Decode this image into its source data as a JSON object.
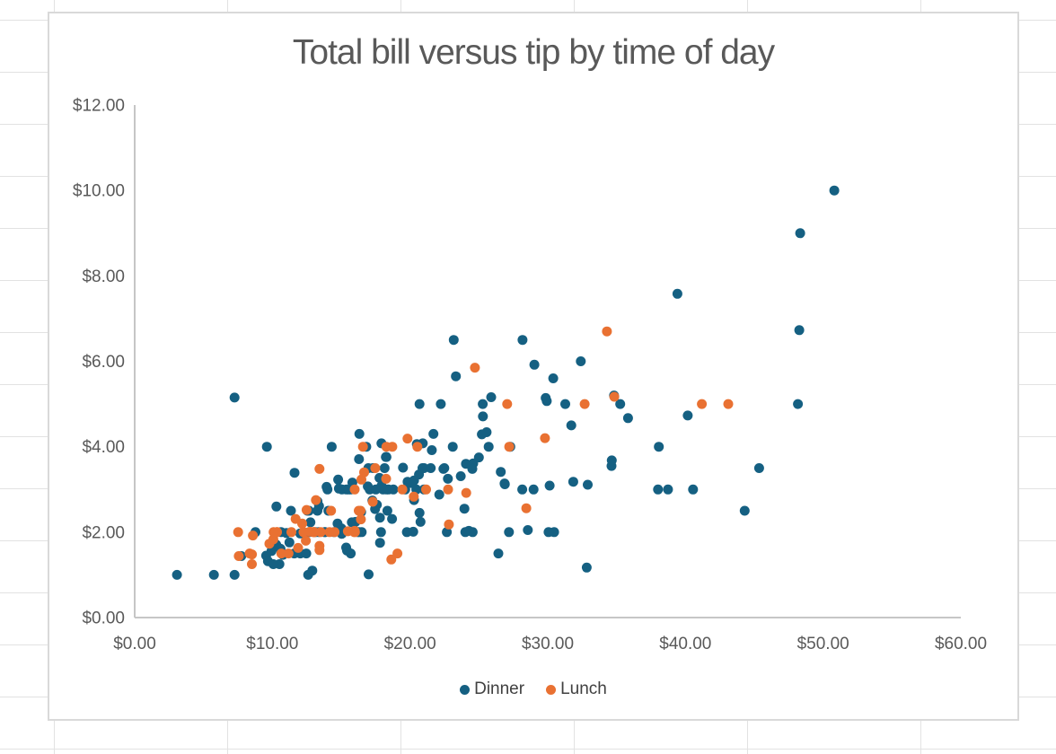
{
  "chart_data": {
    "type": "scatter",
    "title": "Total bill versus tip by time of day",
    "xlabel": "",
    "ylabel": "",
    "xlim": [
      0,
      60
    ],
    "ylim": [
      0,
      12
    ],
    "x_tick_labels": [
      "$0.00",
      "$10.00",
      "$20.00",
      "$30.00",
      "$40.00",
      "$50.00",
      "$60.00"
    ],
    "y_tick_labels": [
      "$0.00",
      "$2.00",
      "$4.00",
      "$6.00",
      "$8.00",
      "$10.00",
      "$12.00"
    ],
    "x_tick_values": [
      0,
      10,
      20,
      30,
      40,
      50,
      60
    ],
    "y_tick_values": [
      0,
      2,
      4,
      6,
      8,
      10,
      12
    ],
    "grid": false,
    "legend_position": "bottom-center",
    "series": [
      {
        "name": "Dinner",
        "color": "#156082",
        "points": [
          [
            16.99,
            1.01
          ],
          [
            10.34,
            1.66
          ],
          [
            21.01,
            3.5
          ],
          [
            23.68,
            3.31
          ],
          [
            24.59,
            3.61
          ],
          [
            25.29,
            4.71
          ],
          [
            8.77,
            2
          ],
          [
            26.88,
            3.12
          ],
          [
            15.04,
            1.96
          ],
          [
            14.78,
            3.23
          ],
          [
            10.27,
            1.71
          ],
          [
            35.26,
            5
          ],
          [
            15.42,
            1.57
          ],
          [
            18.43,
            3
          ],
          [
            14.83,
            3.02
          ],
          [
            21.58,
            3.92
          ],
          [
            10.33,
            1.67
          ],
          [
            16.29,
            3.71
          ],
          [
            16.97,
            3.5
          ],
          [
            20.65,
            3.35
          ],
          [
            17.92,
            4.08
          ],
          [
            20.29,
            2.75
          ],
          [
            15.77,
            2.23
          ],
          [
            39.42,
            7.58
          ],
          [
            19.82,
            3.18
          ],
          [
            17.81,
            2.34
          ],
          [
            13.37,
            2
          ],
          [
            12.69,
            2
          ],
          [
            21.7,
            4.3
          ],
          [
            19.65,
            3
          ],
          [
            9.55,
            1.45
          ],
          [
            18.35,
            2.5
          ],
          [
            15.06,
            3
          ],
          [
            20.69,
            2.45
          ],
          [
            17.78,
            3.27
          ],
          [
            24.06,
            3.6
          ],
          [
            16.31,
            2
          ],
          [
            16.93,
            3.07
          ],
          [
            18.69,
            2.31
          ],
          [
            31.27,
            5
          ],
          [
            16.04,
            2.24
          ],
          [
            17.46,
            2.54
          ],
          [
            13.94,
            3.06
          ],
          [
            9.68,
            1.32
          ],
          [
            30.4,
            5.6
          ],
          [
            18.29,
            3
          ],
          [
            22.23,
            5
          ],
          [
            32.4,
            6
          ],
          [
            28.55,
            2.05
          ],
          [
            18.04,
            3
          ],
          [
            12.54,
            2.5
          ],
          [
            10.29,
            2.6
          ],
          [
            34.81,
            5.2
          ],
          [
            9.94,
            1.56
          ],
          [
            25.56,
            4.34
          ],
          [
            19.49,
            3.51
          ],
          [
            38.01,
            3
          ],
          [
            26.41,
            1.5
          ],
          [
            11.24,
            1.76
          ],
          [
            48.27,
            6.73
          ],
          [
            20.29,
            3.21
          ],
          [
            13.81,
            2
          ],
          [
            11.02,
            1.98
          ],
          [
            18.29,
            3.76
          ],
          [
            17.59,
            2.64
          ],
          [
            20.08,
            3.15
          ],
          [
            16.45,
            2.47
          ],
          [
            3.07,
            1
          ],
          [
            20.23,
            2.01
          ],
          [
            15.01,
            2.09
          ],
          [
            12.02,
            1.97
          ],
          [
            17.07,
            3
          ],
          [
            26.86,
            3.14
          ],
          [
            25.28,
            5
          ],
          [
            14.73,
            2.2
          ],
          [
            10.51,
            1.25
          ],
          [
            17.92,
            3.08
          ],
          [
            28.97,
            3
          ],
          [
            22.49,
            3.5
          ],
          [
            5.75,
            1
          ],
          [
            16.32,
            4.3
          ],
          [
            22.75,
            3.25
          ],
          [
            40.17,
            4.73
          ],
          [
            27.28,
            4
          ],
          [
            12.03,
            1.5
          ],
          [
            21.01,
            3
          ],
          [
            12.46,
            1.5
          ],
          [
            11.35,
            2.5
          ],
          [
            15.38,
            3
          ],
          [
            44.3,
            2.5
          ],
          [
            22.42,
            3.48
          ],
          [
            20.92,
            4.08
          ],
          [
            15.36,
            1.64
          ],
          [
            20.49,
            4.06
          ],
          [
            25.21,
            4.29
          ],
          [
            18.24,
            3.76
          ],
          [
            14.31,
            4
          ],
          [
            14,
            3
          ],
          [
            7.25,
            1
          ],
          [
            38.07,
            4
          ],
          [
            23.95,
            2.55
          ],
          [
            25.71,
            4
          ],
          [
            17.31,
            3.5
          ],
          [
            29.93,
            5.07
          ],
          [
            14.07,
            2.5
          ],
          [
            13.13,
            2
          ],
          [
            17.26,
            2.74
          ],
          [
            24.55,
            2
          ],
          [
            19.77,
            2
          ],
          [
            29.85,
            5.14
          ],
          [
            48.17,
            5
          ],
          [
            25,
            3.75
          ],
          [
            13.39,
            2.61
          ],
          [
            16.49,
            2
          ],
          [
            21.5,
            3.5
          ],
          [
            12.66,
            2.5
          ],
          [
            16.21,
            2
          ],
          [
            13.81,
            2
          ],
          [
            17.51,
            3
          ],
          [
            24.52,
            3.48
          ],
          [
            20.76,
            2.24
          ],
          [
            31.71,
            4.5
          ],
          [
            10.59,
            1.61
          ],
          [
            10.63,
            2
          ],
          [
            50.81,
            10
          ],
          [
            15.81,
            3.16
          ],
          [
            7.25,
            5.15
          ],
          [
            31.85,
            3.18
          ],
          [
            16.82,
            4
          ],
          [
            32.9,
            3.11
          ],
          [
            17.89,
            2
          ],
          [
            14.48,
            2
          ],
          [
            9.6,
            4
          ],
          [
            34.63,
            3.55
          ],
          [
            34.65,
            3.68
          ],
          [
            23.33,
            5.65
          ],
          [
            45.35,
            3.5
          ],
          [
            23.17,
            6.5
          ],
          [
            40.55,
            3
          ],
          [
            20.69,
            5
          ],
          [
            20.9,
            3.5
          ],
          [
            30.46,
            2
          ],
          [
            18.15,
            3.5
          ],
          [
            23.1,
            4
          ],
          [
            15.69,
            1.5
          ],
          [
            26.59,
            3.41
          ],
          [
            38.73,
            3
          ],
          [
            24.27,
            2.03
          ],
          [
            12.76,
            2.23
          ],
          [
            30.06,
            2
          ],
          [
            25.89,
            5.16
          ],
          [
            48.33,
            9
          ],
          [
            13.27,
            2.5
          ],
          [
            28.17,
            6.5
          ],
          [
            12.9,
            1.1
          ],
          [
            28.15,
            3
          ],
          [
            11.59,
            1.5
          ],
          [
            7.74,
            1.44
          ],
          [
            30.14,
            3.09
          ],
          [
            20.45,
            3
          ],
          [
            13.28,
            2.72
          ],
          [
            22.12,
            2.88
          ],
          [
            24.01,
            2
          ],
          [
            15.69,
            3
          ],
          [
            11.61,
            3.39
          ],
          [
            10.77,
            1.47
          ],
          [
            15.53,
            3
          ],
          [
            10.07,
            1.25
          ],
          [
            12.6,
            1
          ],
          [
            32.83,
            1.17
          ],
          [
            35.83,
            4.67
          ],
          [
            29.03,
            5.92
          ],
          [
            27.18,
            2
          ],
          [
            22.67,
            2
          ],
          [
            17.82,
            1.75
          ],
          [
            18.78,
            3
          ]
        ]
      },
      {
        "name": "Lunch",
        "color": "#E97132",
        "points": [
          [
            27.2,
            4
          ],
          [
            22.76,
            3
          ],
          [
            17.29,
            2.71
          ],
          [
            19.44,
            3
          ],
          [
            16.66,
            3.4
          ],
          [
            10.07,
            1.83
          ],
          [
            32.68,
            5
          ],
          [
            15.98,
            2.03
          ],
          [
            34.83,
            5.17
          ],
          [
            13.03,
            2
          ],
          [
            18.28,
            4
          ],
          [
            24.71,
            5.85
          ],
          [
            21.16,
            3
          ],
          [
            10.65,
            1.5
          ],
          [
            12.43,
            1.8
          ],
          [
            24.08,
            2.92
          ],
          [
            11.69,
            2.31
          ],
          [
            13.42,
            1.68
          ],
          [
            14.26,
            2.5
          ],
          [
            15.95,
            2
          ],
          [
            12.48,
            2.52
          ],
          [
            29.8,
            4.2
          ],
          [
            8.52,
            1.48
          ],
          [
            14.52,
            2
          ],
          [
            11.38,
            2
          ],
          [
            22.82,
            2.18
          ],
          [
            19.08,
            1.5
          ],
          [
            20.27,
            2.83
          ],
          [
            11.17,
            1.5
          ],
          [
            12.26,
            2
          ],
          [
            18.26,
            3.25
          ],
          [
            8.51,
            1.25
          ],
          [
            10.33,
            2
          ],
          [
            14.15,
            2
          ],
          [
            16,
            2
          ],
          [
            13.16,
            2.75
          ],
          [
            17.47,
            3.5
          ],
          [
            34.3,
            6.7
          ],
          [
            41.19,
            5
          ],
          [
            27.05,
            5
          ],
          [
            16.43,
            2.3
          ],
          [
            8.35,
            1.5
          ],
          [
            18.64,
            1.36
          ],
          [
            11.87,
            1.63
          ],
          [
            9.78,
            1.73
          ],
          [
            7.51,
            2
          ],
          [
            19.81,
            4.19
          ],
          [
            28.44,
            2.56
          ],
          [
            15.48,
            2.02
          ],
          [
            16.58,
            4
          ],
          [
            7.56,
            1.44
          ],
          [
            10.34,
            2
          ],
          [
            43.11,
            5
          ],
          [
            13,
            2
          ],
          [
            13.51,
            2
          ],
          [
            18.71,
            4
          ],
          [
            12.74,
            2.01
          ],
          [
            13,
            2
          ],
          [
            16.4,
            2.5
          ],
          [
            20.53,
            4
          ],
          [
            16.47,
            3.23
          ],
          [
            12.16,
            2.2
          ],
          [
            13.42,
            3.48
          ],
          [
            8.58,
            1.92
          ],
          [
            15.98,
            3
          ],
          [
            13.42,
            1.58
          ],
          [
            16.27,
            2.5
          ],
          [
            10.09,
            2
          ]
        ]
      }
    ]
  },
  "colors": {
    "title_text": "#595959",
    "tick_text": "#595959",
    "legend_text": "#404040",
    "axis_line": "#C6C6C6",
    "chart_border": "#D9D9D9",
    "sheet_gridline": "#E2E2E2",
    "dinner": "#156082",
    "lunch": "#E97132"
  }
}
